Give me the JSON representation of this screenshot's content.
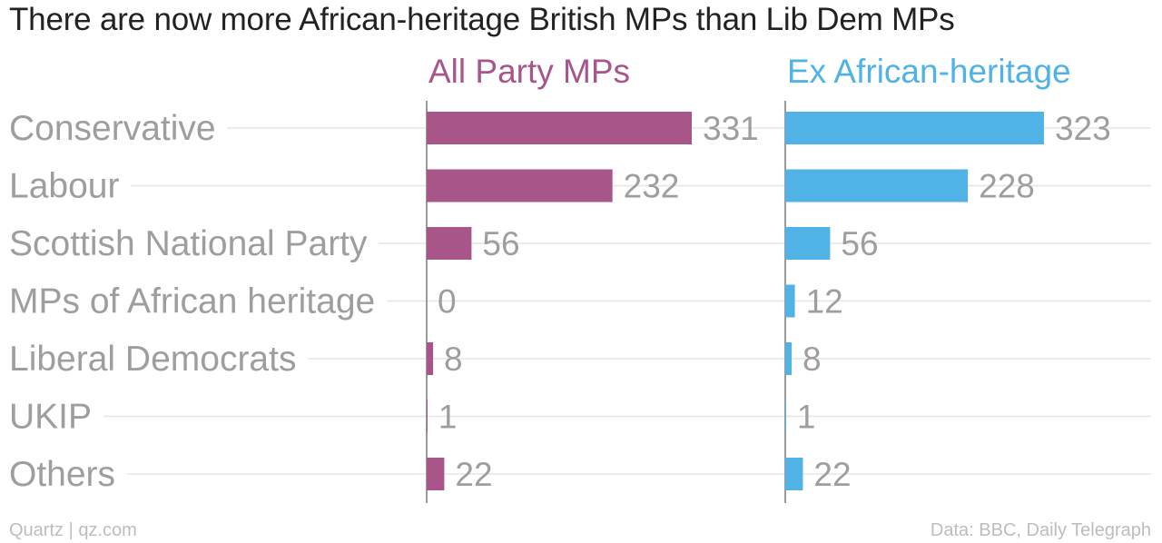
{
  "title": "There are now more African-heritage British MPs than Lib Dem MPs",
  "footer": {
    "source_left": "Quartz | qz.com",
    "source_right": "Data: BBC, Daily Telegraph"
  },
  "colors": {
    "series_1": "#a8568a",
    "series_2": "#51b2e5",
    "category_text": "#9e9e9e",
    "value_text": "#9e9e9e",
    "gridline": "#e6e6e6",
    "axis": "#9a9a9a"
  },
  "chart_data": {
    "type": "bar",
    "orientation": "horizontal",
    "layout": "small-multiples",
    "categories": [
      "Conservative",
      "Labour",
      "Scottish National Party",
      "MPs of African heritage",
      "Liberal Democrats",
      "UKIP",
      "Others"
    ],
    "series": [
      {
        "name": "All Party MPs",
        "values": [
          331,
          232,
          56,
          0,
          8,
          1,
          22
        ]
      },
      {
        "name": "Ex African-heritage",
        "values": [
          323,
          228,
          56,
          12,
          8,
          1,
          22
        ]
      }
    ],
    "xlim": [
      0,
      331
    ],
    "data_labels": true,
    "grid": true
  }
}
